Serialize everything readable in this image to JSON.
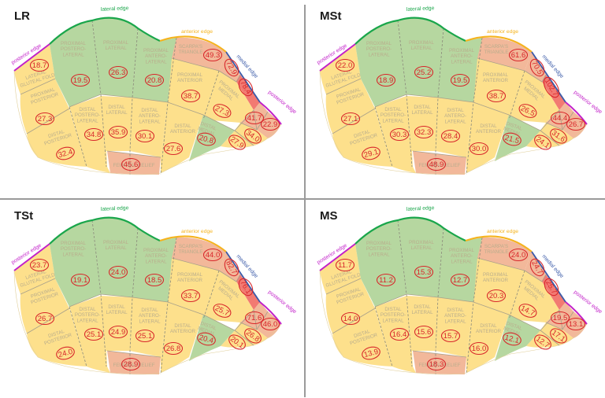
{
  "colors": {
    "yellow": "#fde08c",
    "green": "#b6d7a0",
    "salmon": "#f2b89a",
    "red": "#f27a72",
    "lateral_edge": "#1aa64b",
    "anterior_edge": "#f5b31d",
    "medial_edge": "#3a5aa8",
    "posterior_edge": "#c21fc9",
    "value_ring": "#d8262a",
    "divider": "#9a9a9a"
  },
  "edge_labels": {
    "lateral": "lateral edge",
    "anterior": "anterior edge",
    "medial": "medial edge",
    "posterior_left": "posterior edge",
    "posterior_right": "posterior edge"
  },
  "region_labels": {
    "lateral_gluteal_fold": [
      "LATERAL",
      "GLUTEAL FOLD"
    ],
    "proximal_postero_lateral": [
      "PROXIMAL",
      "POSTERO-",
      "LATERAL"
    ],
    "proximal_lateral": [
      "PROXIMAL",
      "LATERAL"
    ],
    "proximal_antero_lateral": [
      "PROXIMAL",
      "ANTERO-",
      "LATERAL"
    ],
    "scarpas_triangle": [
      "SCARPA'S",
      "TRIANGLE"
    ],
    "proximal_posterior": [
      "PROXIMAL",
      "POSTERIOR"
    ],
    "proximal_anterior": [
      "PROXIMAL",
      "ANTERIOR"
    ],
    "proximal_medial": [
      "PROXIMAL",
      "MEDIAL"
    ],
    "distal_posterior": [
      "DISTAL",
      "POSTERIOR"
    ],
    "distal_postero_lateral": [
      "DISTAL",
      "POSTERO-",
      "LATERAL"
    ],
    "distal_lateral": [
      "DISTAL",
      "LATERAL"
    ],
    "distal_antero_lateral": [
      "DISTAL",
      "ANTERO-",
      "LATERAL"
    ],
    "distal_anterior": [
      "DISTAL",
      "ANTERIOR"
    ],
    "distal_medial": [
      "DISTAL",
      "MEDIAL"
    ],
    "femoral_relief": [
      "FEMORAL RELIEF"
    ]
  },
  "panels": [
    {
      "title": "LR",
      "values": {
        "lateral_gluteal_fold": "18.7",
        "proximal_postero_lateral": "19.5",
        "proximal_lateral": "26.3",
        "proximal_antero_lateral": "20.8",
        "scarpas_triangle": "49.3",
        "adductor_proximal": "72.9",
        "adductor_medial_red": "78.4",
        "proximal_posterior": "27.3",
        "proximal_anterior": "38.7",
        "proximal_medial": "27.3",
        "medial_posterior_upper": "41.7",
        "medial_posterior_edge": "22.9",
        "medial_distal_inner": "34.0",
        "distal_medial_posterior": "27.9",
        "distal_posterior": "32.4",
        "distal_postero_lateral": "34.8",
        "distal_lateral": "35.9",
        "distal_antero_lateral": "30.1",
        "distal_anterior": "27.6",
        "distal_medial": "20.8",
        "femoral_relief": "45.6"
      }
    },
    {
      "title": "MSt",
      "values": {
        "lateral_gluteal_fold": "22.0",
        "proximal_postero_lateral": "18.9",
        "proximal_lateral": "25.2",
        "proximal_antero_lateral": "19.5",
        "scarpas_triangle": "61.6",
        "adductor_proximal": "70.5",
        "adductor_medial_red": "102.7",
        "proximal_posterior": "27.1",
        "proximal_anterior": "38.7",
        "proximal_medial": "26.5",
        "medial_posterior_upper": "44.4",
        "medial_posterior_edge": "26.7",
        "medial_distal_inner": "31.6",
        "distal_medial_posterior": "24.1",
        "distal_posterior": "29.1",
        "distal_postero_lateral": "30.3",
        "distal_lateral": "32.3",
        "distal_antero_lateral": "28.4",
        "distal_anterior": "30.0",
        "distal_medial": "21.5",
        "femoral_relief": "48.9"
      }
    },
    {
      "title": "TSt",
      "values": {
        "lateral_gluteal_fold": "23.7",
        "proximal_postero_lateral": "19.1",
        "proximal_lateral": "24.0",
        "proximal_antero_lateral": "18.5",
        "scarpas_triangle": "44.0",
        "adductor_proximal": "82.7",
        "adductor_medial_red": "76.1",
        "proximal_posterior": "26.7",
        "proximal_anterior": "33.7",
        "proximal_medial": "25.7",
        "medial_posterior_upper": "71.6",
        "medial_posterior_edge": "46.0",
        "medial_distal_inner": "26.8",
        "distal_medial_posterior": "20.1",
        "distal_posterior": "24.0",
        "distal_postero_lateral": "25.1",
        "distal_lateral": "24.9",
        "distal_antero_lateral": "25.1",
        "distal_anterior": "26.8",
        "distal_medial": "20.4",
        "femoral_relief": "28.9"
      }
    },
    {
      "title": "MS",
      "values": {
        "lateral_gluteal_fold": "11.7",
        "proximal_postero_lateral": "11.2",
        "proximal_lateral": "15.3",
        "proximal_antero_lateral": "12.7",
        "scarpas_triangle": "24.0",
        "adductor_proximal": "24.7",
        "adductor_medial_red": "25.7",
        "proximal_posterior": "14.0",
        "proximal_anterior": "20.3",
        "proximal_medial": "14.7",
        "medial_posterior_upper": "19.5",
        "medial_posterior_edge": "13.1",
        "medial_distal_inner": "17.1",
        "distal_medial_posterior": "12.7",
        "distal_posterior": "13.9",
        "distal_postero_lateral": "16.4",
        "distal_lateral": "15.6",
        "distal_antero_lateral": "15.7",
        "distal_anterior": "16.0",
        "distal_medial": "12.1",
        "femoral_relief": "18.3"
      }
    }
  ]
}
